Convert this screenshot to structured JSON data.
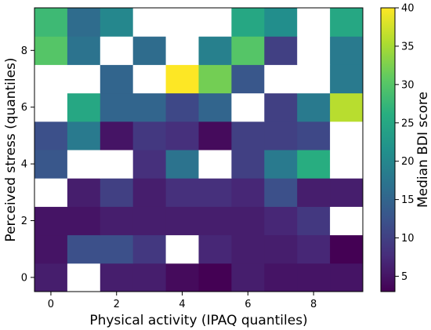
{
  "chart_data": {
    "type": "heatmap",
    "title": "",
    "xlabel": "Physical activity (IPAQ quantiles)",
    "ylabel": "Perceived stress (quantiles)",
    "colorbar_label": "Median BDI score",
    "colormap": "viridis",
    "vmin": 3,
    "vmax": 40,
    "missing_color": "#ffffff",
    "x_categories": [
      0,
      1,
      2,
      3,
      4,
      5,
      6,
      7,
      8,
      9
    ],
    "y_categories": [
      0,
      1,
      2,
      3,
      4,
      5,
      6,
      7,
      8,
      9
    ],
    "xticks": [
      "0",
      "2",
      "4",
      "6",
      "8"
    ],
    "yticks": [
      "0",
      "2",
      "4",
      "6",
      "8"
    ],
    "colorbar_ticks": [
      "5",
      "10",
      "15",
      "20",
      "25",
      "30",
      "35",
      "40"
    ],
    "colorbar_tick_values": [
      5,
      10,
      15,
      20,
      25,
      30,
      35,
      40
    ],
    "values": [
      [
        6,
        null,
        6,
        6,
        4,
        3,
        6,
        5,
        5,
        5
      ],
      [
        5,
        12,
        12,
        9,
        null,
        7,
        6,
        6,
        7,
        3
      ],
      [
        5,
        5,
        6,
        6,
        6,
        6,
        6,
        7,
        9,
        null
      ],
      [
        null,
        6,
        10,
        6,
        8,
        8,
        7,
        12,
        6,
        6
      ],
      [
        13,
        null,
        null,
        8,
        17,
        null,
        10,
        18,
        26,
        null
      ],
      [
        12,
        18,
        5,
        9,
        8,
        4,
        10,
        10,
        11,
        null
      ],
      [
        null,
        25,
        15,
        15,
        11,
        15,
        null,
        10,
        18,
        36
      ],
      [
        null,
        null,
        15,
        null,
        40,
        32,
        13,
        null,
        null,
        18
      ],
      [
        30,
        17,
        null,
        16,
        null,
        19,
        30,
        10,
        null,
        18
      ],
      [
        28,
        16,
        20,
        null,
        null,
        null,
        25,
        21,
        null,
        25
      ]
    ]
  }
}
